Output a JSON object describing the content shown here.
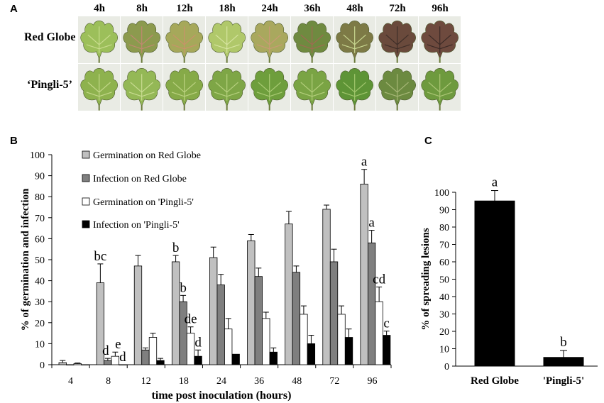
{
  "panelA": {
    "letter": "A",
    "times": [
      "4h",
      "8h",
      "12h",
      "18h",
      "24h",
      "36h",
      "48h",
      "72h",
      "96h"
    ],
    "rows": [
      {
        "label": "Red Globe",
        "leafColors": [
          {
            "fill": "#9cbf5a",
            "vein": "#c9dc8e"
          },
          {
            "fill": "#8c9a4e",
            "vein": "#c08870"
          },
          {
            "fill": "#a6a85a",
            "vein": "#c9926a"
          },
          {
            "fill": "#b0c86a",
            "vein": "#d6e4a0"
          },
          {
            "fill": "#a9a85e",
            "vein": "#c99a74"
          },
          {
            "fill": "#6f8a40",
            "vein": "#a06a52"
          },
          {
            "fill": "#7d7a46",
            "vein": "#c8d690"
          },
          {
            "fill": "#6a4a3c",
            "vein": "#3f2e28"
          },
          {
            "fill": "#6e4a3e",
            "vein": "#3c2a26"
          }
        ]
      },
      {
        "label": "‘Pingli-5’",
        "leafColors": [
          {
            "fill": "#8eb24e",
            "vein": "#c4d88a"
          },
          {
            "fill": "#94b856",
            "vein": "#c9dc92"
          },
          {
            "fill": "#86aa48",
            "vein": "#bcd282"
          },
          {
            "fill": "#7ea646",
            "vein": "#b6d07e"
          },
          {
            "fill": "#6e9e3c",
            "vein": "#aacb74"
          },
          {
            "fill": "#7aa444",
            "vein": "#b4cf7c"
          },
          {
            "fill": "#5e9436",
            "vein": "#a2c66e"
          },
          {
            "fill": "#6c8a40",
            "vein": "#a8b878"
          },
          {
            "fill": "#6e9a3e",
            "vein": "#acc676"
          }
        ]
      }
    ]
  },
  "chart_data": [
    {
      "panel": "B",
      "type": "bar",
      "title": "",
      "xlabel": "time post inoculation (hours)",
      "ylabel": "% of germination and infection",
      "ylim": [
        0,
        100
      ],
      "yticks": [
        0,
        10,
        20,
        30,
        40,
        50,
        60,
        70,
        80,
        90,
        100
      ],
      "categories": [
        "4",
        "8",
        "12",
        "18",
        "24",
        "36",
        "48",
        "72",
        "96"
      ],
      "legend_position": "top-left",
      "grid": false,
      "series": [
        {
          "name": "Germination on Red Globe",
          "color": "#c0c0c0",
          "values": [
            1,
            39,
            47,
            49,
            51,
            59,
            67,
            74,
            86
          ],
          "errors": [
            1,
            9,
            5,
            3,
            5,
            3,
            6,
            2,
            7
          ]
        },
        {
          "name": "Infection on Red Globe",
          "color": "#7f7f7f",
          "values": [
            0,
            2,
            7,
            30,
            38,
            42,
            44,
            49,
            58
          ],
          "errors": [
            0,
            1,
            1,
            3,
            5,
            4,
            3,
            6,
            6
          ]
        },
        {
          "name": "Germination on 'Pingli-5'",
          "color": "#ffffff",
          "values": [
            0.5,
            4,
            13,
            15,
            17,
            22,
            24,
            24,
            30
          ],
          "errors": [
            0.3,
            2,
            2,
            3,
            5,
            3,
            4,
            4,
            7
          ]
        },
        {
          "name": "Infection on 'Pingli-5'",
          "color": "#000000",
          "values": [
            0,
            0,
            2,
            4,
            5,
            6,
            10,
            13,
            14
          ],
          "errors": [
            0,
            0,
            1,
            3,
            0,
            2,
            4,
            4,
            2
          ]
        }
      ],
      "annotations": [
        {
          "category": "8",
          "series": 0,
          "text": "bc"
        },
        {
          "category": "8",
          "series": 1,
          "text": "d"
        },
        {
          "category": "8",
          "series": 2,
          "text": "e"
        },
        {
          "category": "8",
          "series": 3,
          "text": "d"
        },
        {
          "category": "18",
          "series": 0,
          "text": "b"
        },
        {
          "category": "18",
          "series": 1,
          "text": "b"
        },
        {
          "category": "18",
          "series": 2,
          "text": "de"
        },
        {
          "category": "18",
          "series": 3,
          "text": "d"
        },
        {
          "category": "96",
          "series": 0,
          "text": "a"
        },
        {
          "category": "96",
          "series": 1,
          "text": "a"
        },
        {
          "category": "96",
          "series": 2,
          "text": "cd"
        },
        {
          "category": "96",
          "series": 3,
          "text": "c"
        }
      ]
    },
    {
      "panel": "C",
      "type": "bar",
      "title": "",
      "xlabel": "",
      "ylabel": "% of spreading lesions",
      "ylim": [
        0,
        100
      ],
      "yticks": [
        0,
        10,
        20,
        30,
        40,
        50,
        60,
        70,
        80,
        90,
        100
      ],
      "categories": [
        "Red Globe",
        "'Pingli-5'"
      ],
      "grid": false,
      "values": [
        95,
        5
      ],
      "errors": [
        6,
        4
      ],
      "color": "#000000",
      "annotations": [
        "a",
        "b"
      ]
    }
  ]
}
